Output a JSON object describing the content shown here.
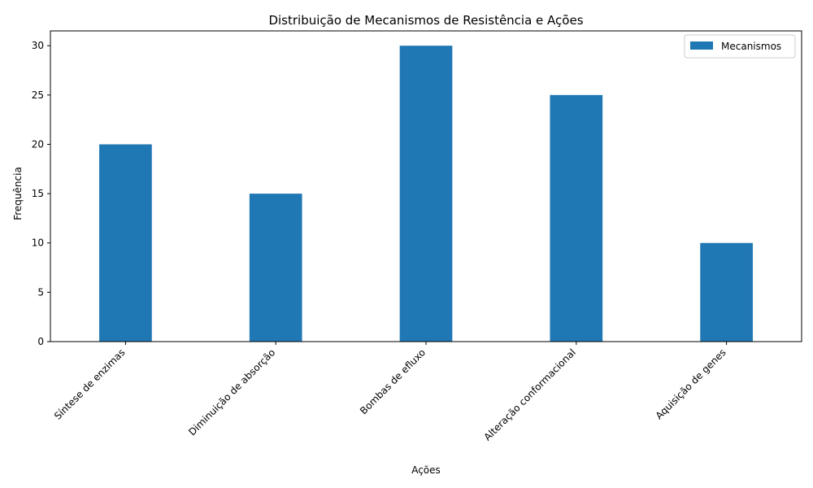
{
  "chart_data": {
    "type": "bar",
    "title": "Distribuição de Mecanismos de Resistência e Ações",
    "xlabel": "Ações",
    "ylabel": "Frequência",
    "categories": [
      "Síntese de enzimas",
      "Diminuição de absorção",
      "Bombas de efluxo",
      "Alteração conformacional",
      "Aquisição de genes"
    ],
    "series": [
      {
        "name": "Mecanismos",
        "values": [
          20,
          15,
          30,
          25,
          10
        ],
        "color": "#1f77b4"
      }
    ],
    "ylim": [
      0,
      31.5
    ],
    "yticks": [
      0,
      5,
      10,
      15,
      20,
      25,
      30
    ],
    "grid": false,
    "legend_position": "top-right"
  }
}
